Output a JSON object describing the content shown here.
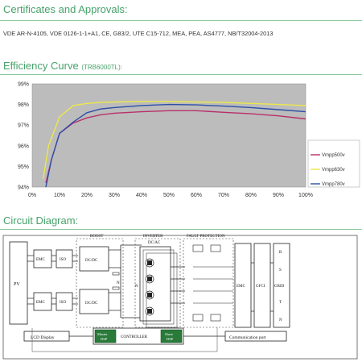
{
  "certificates": {
    "title": "Certificates and Approvals:",
    "text": "VDE AR-N-4105, VDE 0126-1-1+A1, CE, G83/2, UTE C15-712, MEA, PEA, AS4777, NB/T32004-2013"
  },
  "efficiency": {
    "title": "Efficiency Curve",
    "model": "(TRB6000TL):"
  },
  "chart_data": {
    "type": "line",
    "title": "",
    "xlabel": "",
    "ylabel": "",
    "xlim": [
      0,
      100
    ],
    "ylim": [
      94,
      99
    ],
    "x_ticks": [
      "0%",
      "10%",
      "20%",
      "30%",
      "40%",
      "50%",
      "60%",
      "70%",
      "80%",
      "90%",
      "100%"
    ],
    "y_ticks": [
      "94%",
      "95%",
      "96%",
      "97%",
      "98%",
      "99%"
    ],
    "grid": false,
    "legend": "right",
    "series": [
      {
        "name": "Vmpp500v",
        "color": "#b8306a",
        "x": [
          5,
          7,
          10,
          15,
          20,
          25,
          30,
          40,
          50,
          60,
          70,
          80,
          90,
          100
        ],
        "y": [
          94.2,
          95.3,
          96.6,
          97.1,
          97.35,
          97.5,
          97.58,
          97.65,
          97.7,
          97.7,
          97.62,
          97.55,
          97.45,
          97.3
        ]
      },
      {
        "name": "Vmpp630v",
        "color": "#ece84a",
        "x": [
          4,
          6,
          10,
          15,
          20,
          25,
          30,
          40,
          50,
          60,
          70,
          80,
          90,
          100
        ],
        "y": [
          94.4,
          96.0,
          97.4,
          97.95,
          98.05,
          98.1,
          98.12,
          98.15,
          98.15,
          98.12,
          98.1,
          98.05,
          98.0,
          97.95
        ]
      },
      {
        "name": "Vmpp780v",
        "color": "#2d4fa6",
        "x": [
          5,
          7,
          10,
          15,
          20,
          25,
          30,
          40,
          50,
          60,
          70,
          80,
          90,
          100
        ],
        "y": [
          94.0,
          95.3,
          96.6,
          97.15,
          97.6,
          97.78,
          97.85,
          97.95,
          98.0,
          97.98,
          97.92,
          97.85,
          97.75,
          97.65
        ]
      }
    ]
  },
  "circuit": {
    "title": "Circuit Diagram:",
    "labels": {
      "pv": "PV",
      "emc_top": "EMC",
      "iso_top": "ISO",
      "dcdc_top": "DC/DC",
      "emc_bot": "EMC",
      "iso_bot": "ISO",
      "dcdc_bot": "DC/DC",
      "boost": "BOOST",
      "inverter": "INVERTER",
      "dcac": "DC/AC",
      "fault": "FAULT PROTECTION",
      "emc_out": "EMC",
      "gfci": "GFCI",
      "grid": "GRID",
      "r": "R",
      "s": "S",
      "t": "T",
      "n": "N",
      "n_bus": "N",
      "n_inv": "N",
      "lcd": "LCD Display",
      "controller": "CONTROLLER",
      "master": "Master",
      "master_dsp": "DSP",
      "slave": "Slave",
      "slave_dsp": "DSP",
      "comm": "Communication port"
    }
  }
}
